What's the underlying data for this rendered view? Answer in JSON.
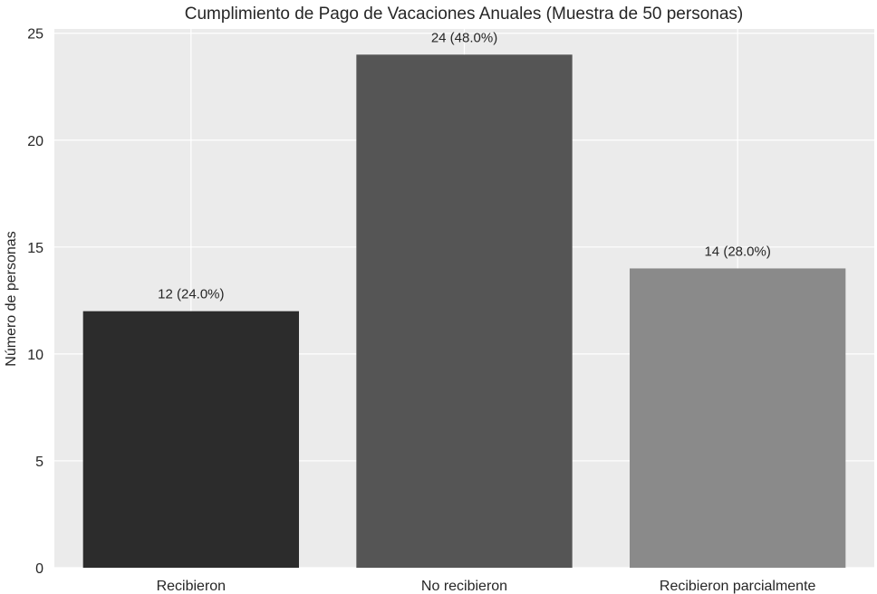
{
  "chart_data": {
    "type": "bar",
    "title": "Cumplimiento de Pago de Vacaciones Anuales (Muestra de 50 personas)",
    "xlabel": "",
    "ylabel": "Número de personas",
    "categories": [
      "Recibieron",
      "No recibieron",
      "Recibieron parcialmente"
    ],
    "values": [
      12,
      24,
      14
    ],
    "data_labels": [
      "12 (24.0%)",
      "24 (48.0%)",
      "14 (28.0%)"
    ],
    "colors": [
      "#2c2c2c",
      "#555555",
      "#8a8a8a"
    ],
    "ylim": [
      0,
      25.2
    ],
    "yticks": [
      0,
      5,
      10,
      15,
      20,
      25
    ],
    "ytick_labels": [
      "0",
      "5",
      "10",
      "15",
      "20",
      "25"
    ],
    "grid": true,
    "background": "#ebebeb"
  }
}
